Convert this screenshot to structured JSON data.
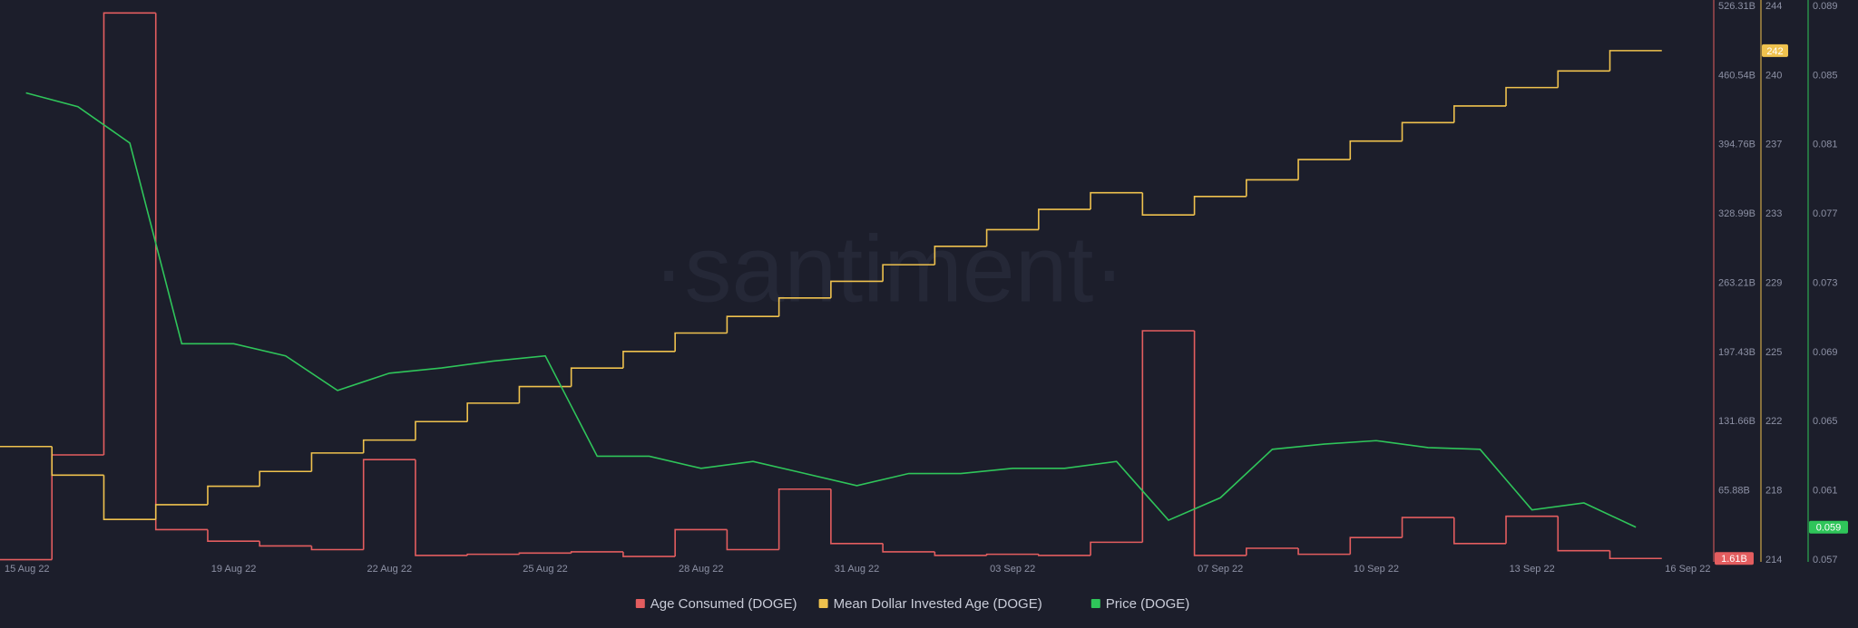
{
  "chart_data": {
    "type": "line",
    "watermark": "·santiment·",
    "categories": [
      "15 Aug 22",
      null,
      null,
      null,
      "19 Aug 22",
      null,
      null,
      "22 Aug 22",
      null,
      null,
      "25 Aug 22",
      null,
      null,
      "28 Aug 22",
      null,
      null,
      "31 Aug 22",
      null,
      null,
      "03 Sep 22",
      null,
      null,
      null,
      "07 Sep 22",
      null,
      null,
      "10 Sep 22",
      null,
      null,
      "13 Sep 22",
      null,
      null,
      "16 Sep 22"
    ],
    "series": [
      {
        "name": "Age Consumed (DOGE)",
        "color": "#e35d5f",
        "axis": "y",
        "step": true,
        "values": [
          0.5,
          100,
          520,
          29,
          18,
          13.5,
          10,
          95.5,
          4.5,
          5.6,
          6.7,
          7.9,
          3.5,
          29,
          10,
          67.5,
          15.8,
          7.9,
          4.5,
          5.6,
          4.5,
          17,
          218,
          4.5,
          11.3,
          5.6,
          21.5,
          40.5,
          15.8,
          41.7,
          9,
          1.61,
          null
        ],
        "value_labels": [
          null,
          null,
          null,
          null,
          null,
          null,
          null,
          null,
          null,
          null,
          null,
          null,
          null,
          null,
          null,
          null,
          null,
          null,
          null,
          null,
          null,
          null,
          null,
          null,
          null,
          null,
          null,
          null,
          null,
          null,
          null,
          "1.61B",
          null
        ]
      },
      {
        "name": "Mean Dollar Invested Age (DOGE)",
        "color": "#efc24e",
        "axis": "y2",
        "step": true,
        "values": [
          220.15,
          218.6,
          216.2,
          217.0,
          218.0,
          218.8,
          219.8,
          220.5,
          221.5,
          222.5,
          223.4,
          224.4,
          225.3,
          226.3,
          227.2,
          228.2,
          229.1,
          230.0,
          231.0,
          231.9,
          233.0,
          233.9,
          232.7,
          233.7,
          234.6,
          235.7,
          236.7,
          237.7,
          238.6,
          239.6,
          240.5,
          241.6,
          null
        ],
        "value_labels": [
          null,
          null,
          null,
          null,
          null,
          null,
          null,
          null,
          null,
          null,
          null,
          null,
          null,
          null,
          null,
          null,
          null,
          null,
          null,
          null,
          null,
          null,
          null,
          null,
          null,
          null,
          null,
          null,
          null,
          null,
          null,
          "242",
          null
        ]
      },
      {
        "name": "Price (DOGE)",
        "color": "#2fc55a",
        "axis": "y3",
        "step": false,
        "values": [
          0.084,
          0.0832,
          0.0811,
          0.0695,
          0.0695,
          0.0688,
          0.0668,
          0.0678,
          0.0681,
          0.0685,
          0.0688,
          0.063,
          0.063,
          0.0623,
          0.0627,
          0.062,
          0.0613,
          0.062,
          0.062,
          0.0623,
          0.0623,
          0.0627,
          0.0593,
          0.0606,
          0.0634,
          0.0637,
          0.0639,
          0.0635,
          0.0634,
          0.0599,
          0.0603,
          0.0589,
          null
        ],
        "value_labels": [
          null,
          null,
          null,
          null,
          null,
          null,
          null,
          null,
          null,
          null,
          null,
          null,
          null,
          null,
          null,
          null,
          null,
          null,
          null,
          null,
          null,
          null,
          null,
          null,
          null,
          null,
          null,
          null,
          null,
          null,
          null,
          "0.059",
          null
        ]
      }
    ],
    "ylim": [
      0.1,
      526.31
    ],
    "yticks": [
      {
        "value": 65.88,
        "label": "65.88B"
      },
      {
        "value": 131.66,
        "label": "131.66B"
      },
      {
        "value": 197.43,
        "label": "197.43B"
      },
      {
        "value": 263.21,
        "label": "263.21B"
      },
      {
        "value": 328.99,
        "label": "328.99B"
      },
      {
        "value": 394.76,
        "label": "394.76B"
      },
      {
        "value": 460.54,
        "label": "460.54B"
      },
      {
        "value": 526.31,
        "label": "526.31B"
      }
    ],
    "y2lim": [
      214,
      244
    ],
    "y2ticks": [
      214,
      {
        "value": 217.75,
        "label": "218"
      },
      {
        "value": 221.5,
        "label": "222"
      },
      {
        "value": 225.25,
        "label": "225"
      },
      229,
      {
        "value": 232.75,
        "label": "233"
      },
      {
        "value": 236.5,
        "label": "237"
      },
      {
        "value": 240.25,
        "label": "240"
      },
      244
    ],
    "y3lim": [
      0.057,
      0.089
    ],
    "y3ticks": [
      0.057,
      0.061,
      0.065,
      0.069,
      0.073,
      0.077,
      0.081,
      0.085,
      0.089
    ],
    "grid": false,
    "legend": "bottom"
  }
}
